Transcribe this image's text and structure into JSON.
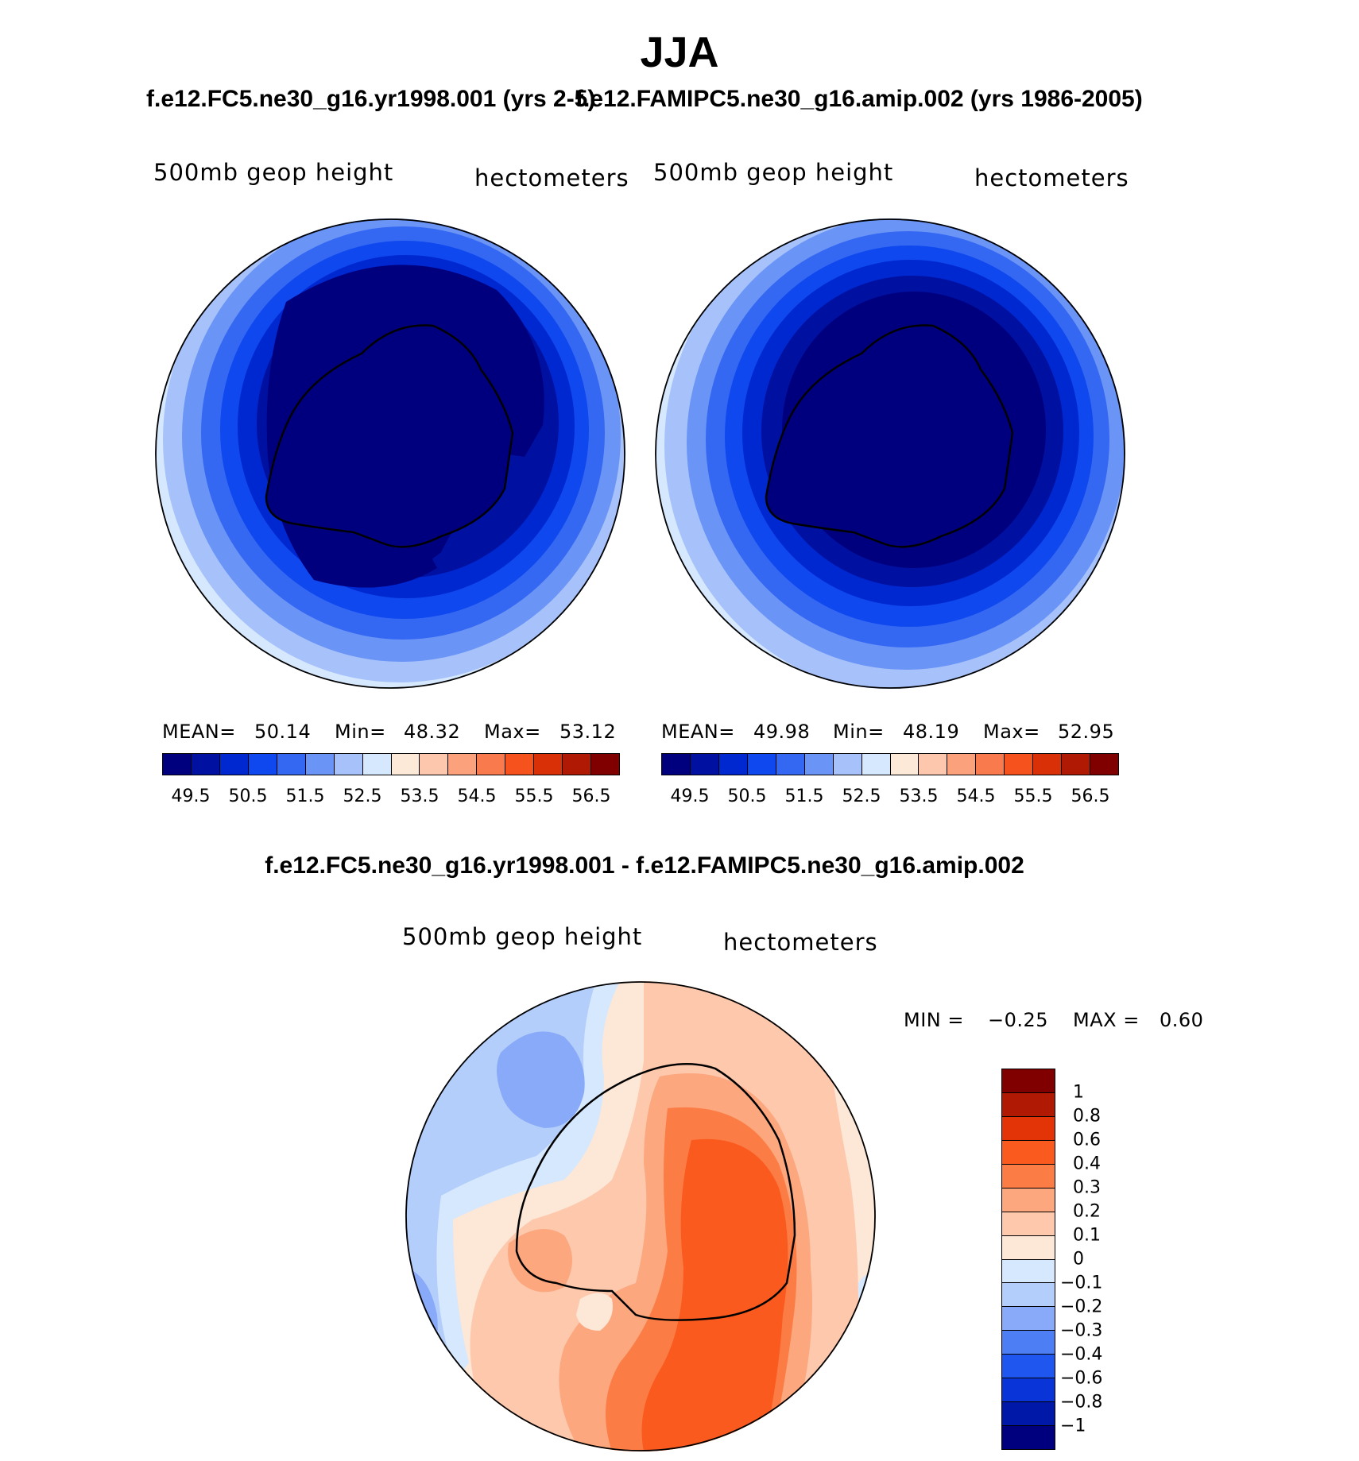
{
  "title": "JJA",
  "panels": [
    {
      "case_title": "f.e12.FC5.ne30_g16.yr1998.001 (yrs 2-5)",
      "variable": "500mb geop height",
      "units": "hectometers",
      "stats": {
        "mean_label": "MEAN=",
        "mean": "50.14",
        "min_label": "Min=",
        "min": "48.32",
        "max_label": "Max=",
        "max": "53.12"
      }
    },
    {
      "case_title": "f.e12.FAMIPC5.ne30_g16.amip.002 (yrs 1986-2005)",
      "variable": "500mb geop height",
      "units": "hectometers",
      "stats": {
        "mean_label": "MEAN=",
        "mean": "49.98",
        "min_label": "Min=",
        "min": "48.19",
        "max_label": "Max=",
        "max": "52.95"
      }
    }
  ],
  "abs_colorbar": {
    "colors": [
      "#00007f",
      "#0010a0",
      "#0028d0",
      "#0f48ee",
      "#3568f2",
      "#6a94f6",
      "#a7c2fa",
      "#d6e8fd",
      "#fde9d8",
      "#fcc7ad",
      "#fba17c",
      "#f97a4c",
      "#f5521e",
      "#d93008",
      "#b01a04",
      "#800000"
    ],
    "tick_labels": [
      "49.5",
      "50.5",
      "51.5",
      "52.5",
      "53.5",
      "54.5",
      "55.5",
      "56.5"
    ]
  },
  "difference": {
    "title": "f.e12.FC5.ne30_g16.yr1998.001 - f.e12.FAMIPC5.ne30_g16.amip.002",
    "variable": "500mb geop height",
    "units": "hectometers",
    "min_label": "MIN =",
    "min": "−0.25",
    "max_label": "MAX =",
    "max": "0.60",
    "colorbar": {
      "colors_top_to_bottom": [
        "#800000",
        "#b01a04",
        "#e33407",
        "#fb5a1e",
        "#fb7d45",
        "#fca77e",
        "#fdc8ac",
        "#fde7d6",
        "#d6e8fd",
        "#b4cefb",
        "#88aaf8",
        "#4d7ef4",
        "#1e56ef",
        "#0834d8",
        "#0018a8",
        "#00007f"
      ],
      "labels_top_to_bottom": [
        "1",
        "0.8",
        "0.6",
        "0.4",
        "0.3",
        "0.2",
        "0.1",
        "0",
        "−0.1",
        "−0.2",
        "−0.3",
        "−0.4",
        "−0.6",
        "−0.8",
        "−1"
      ]
    }
  }
}
